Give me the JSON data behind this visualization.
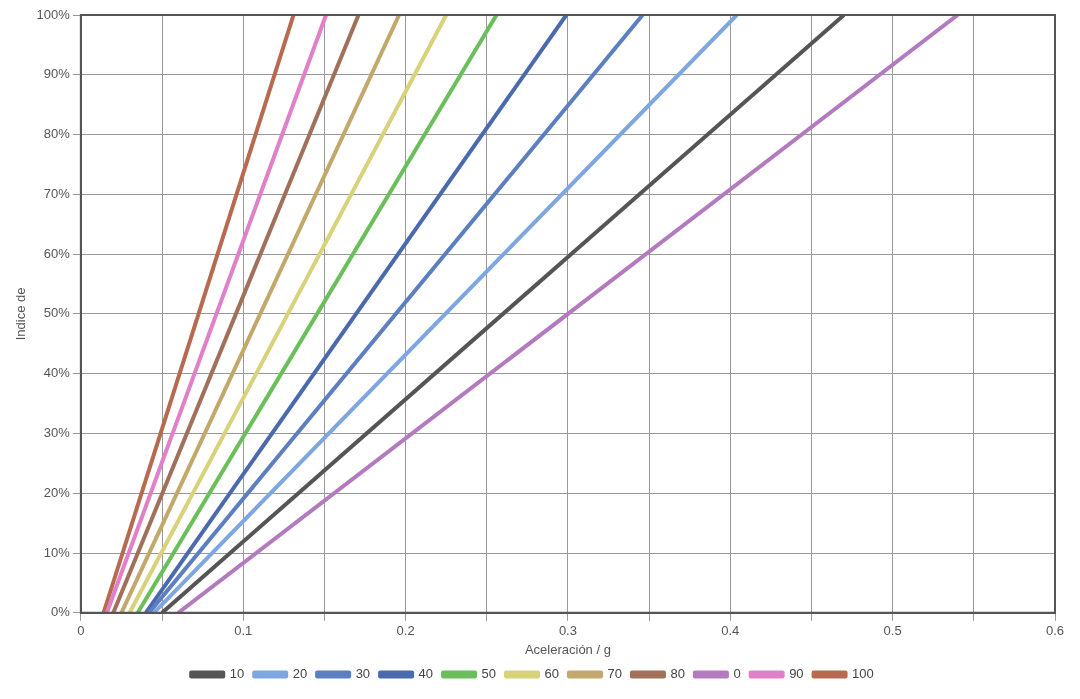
{
  "chart_data": {
    "type": "line",
    "xlabel": "Aceleración / g",
    "ylabel": "Indice de",
    "xlim": [
      0,
      0.6
    ],
    "xticks": [
      0,
      {
        "value": 0.05,
        "label": null
      },
      0.1,
      {
        "value": 0.15,
        "label": null
      },
      0.2,
      {
        "value": 0.25,
        "label": null
      },
      0.3,
      {
        "value": 0.35,
        "label": null
      },
      0.4,
      {
        "value": 0.45,
        "label": null
      },
      0.5,
      {
        "value": 0.55,
        "label": null
      },
      0.6
    ],
    "ylim": [
      0,
      100
    ],
    "yticks": [
      {
        "value": 0,
        "label": "0%"
      },
      {
        "value": 10,
        "label": "10%"
      },
      {
        "value": 20,
        "label": "20%"
      },
      {
        "value": 30,
        "label": "30%"
      },
      {
        "value": 40,
        "label": "40%"
      },
      {
        "value": 50,
        "label": "50%"
      },
      {
        "value": 60,
        "label": "60%"
      },
      {
        "value": 70,
        "label": "70%"
      },
      {
        "value": 80,
        "label": "80%"
      },
      {
        "value": 90,
        "label": "90%"
      },
      {
        "value": 100,
        "label": "100%"
      }
    ],
    "grid": true,
    "legend": "bottom",
    "marker": "none",
    "line_style": "solid",
    "series": [
      {
        "name": "10",
        "color": "#555555",
        "x": [
          0.05,
          0.47
        ],
        "values": [
          0,
          100
        ]
      },
      {
        "name": "20",
        "color": "#7ea6e0",
        "x": [
          0.045,
          0.404
        ],
        "values": [
          0,
          100
        ]
      },
      {
        "name": "30",
        "color": "#5b7fc0",
        "x": [
          0.042,
          0.346
        ],
        "values": [
          0,
          100
        ]
      },
      {
        "name": "40",
        "color": "#4a6aad",
        "x": [
          0.04,
          0.299
        ],
        "values": [
          0,
          100
        ]
      },
      {
        "name": "50",
        "color": "#6abf5a",
        "x": [
          0.035,
          0.256
        ],
        "values": [
          0,
          100
        ]
      },
      {
        "name": "60",
        "color": "#d8d27a",
        "x": [
          0.03,
          0.225
        ],
        "values": [
          0,
          100
        ]
      },
      {
        "name": "70",
        "color": "#c2a86a",
        "x": [
          0.025,
          0.196
        ],
        "values": [
          0,
          100
        ]
      },
      {
        "name": "80",
        "color": "#a0705a",
        "x": [
          0.02,
          0.171
        ],
        "values": [
          0,
          100
        ]
      },
      {
        "name": "0",
        "color": "#b47ac0",
        "x": [
          0.06,
          0.54
        ],
        "values": [
          0,
          100
        ]
      },
      {
        "name": "90",
        "color": "#e080c8",
        "x": [
          0.016,
          0.151
        ],
        "values": [
          0,
          100
        ]
      },
      {
        "name": "100",
        "color": "#b86a50",
        "x": [
          0.014,
          0.131
        ],
        "values": [
          0,
          100
        ]
      }
    ]
  }
}
